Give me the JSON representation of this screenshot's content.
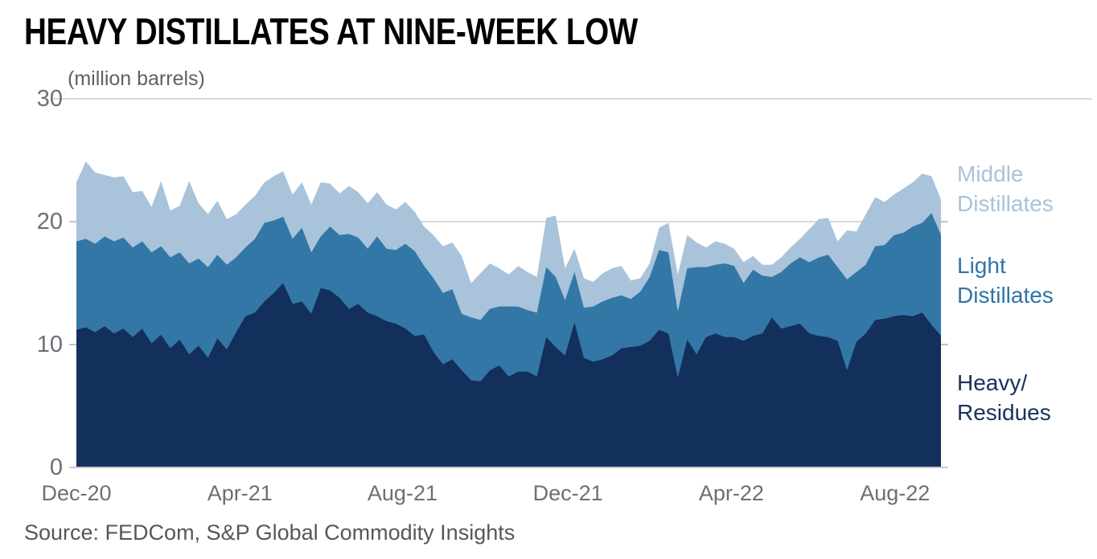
{
  "title": "HEAVY DISTILLATES AT NINE-WEEK LOW",
  "source": "Source: FEDCom, S&P Global Commodity Insights",
  "chart_data": {
    "type": "area",
    "stacked": true,
    "title": "HEAVY DISTILLATES AT NINE-WEEK LOW",
    "ylabel": "(million barrels)",
    "xlabel": "",
    "ylim": [
      0,
      30
    ],
    "y_ticks": [
      30,
      20,
      10,
      0
    ],
    "grid": true,
    "legend_position": "right",
    "frequency": "weekly",
    "n_points": 93,
    "x_range": [
      "Dec-20",
      "Sep-22"
    ],
    "x_tick_labels": [
      "Dec-20",
      "Apr-21",
      "Aug-21",
      "Dec-21",
      "Apr-22",
      "Aug-22"
    ],
    "x_tick_weeks": [
      0,
      17.4,
      34.7,
      52.3,
      69.7,
      87.1
    ],
    "series": [
      {
        "name": "Heavy/Residues",
        "color": "#132f5c",
        "values": [
          11.2,
          11.4,
          11.0,
          11.5,
          10.9,
          11.3,
          10.6,
          11.3,
          10.1,
          10.8,
          9.7,
          10.4,
          9.2,
          9.9,
          8.9,
          10.5,
          9.6,
          11.0,
          12.3,
          12.6,
          13.5,
          14.2,
          15.0,
          13.3,
          13.5,
          12.5,
          14.6,
          14.4,
          13.8,
          12.9,
          13.3,
          12.6,
          12.3,
          11.9,
          11.7,
          11.3,
          10.7,
          10.8,
          9.4,
          8.4,
          8.8,
          7.9,
          7.1,
          7.0,
          7.9,
          8.3,
          7.4,
          7.8,
          7.8,
          7.4,
          10.6,
          9.8,
          9.1,
          11.8,
          8.9,
          8.6,
          8.8,
          9.1,
          9.7,
          9.8,
          9.9,
          10.3,
          11.2,
          10.9,
          7.3,
          10.4,
          9.2,
          10.6,
          10.9,
          10.6,
          10.6,
          10.3,
          10.7,
          10.9,
          12.2,
          11.3,
          11.5,
          11.7,
          10.9,
          10.7,
          10.6,
          10.3,
          7.9,
          10.2,
          10.9,
          12.0,
          12.1,
          12.3,
          12.4,
          12.3,
          12.6,
          11.6,
          10.7
        ]
      },
      {
        "name": "Light Distillates",
        "color": "#3377a6",
        "values": [
          7.2,
          7.2,
          7.2,
          7.3,
          7.5,
          7.4,
          7.3,
          7.1,
          7.4,
          7.2,
          7.4,
          7.1,
          7.4,
          7.1,
          7.4,
          6.8,
          6.9,
          6.1,
          5.6,
          6.0,
          6.4,
          5.9,
          5.4,
          5.3,
          6.0,
          5.0,
          4.2,
          5.2,
          5.1,
          6.1,
          5.4,
          5.2,
          6.5,
          5.9,
          6.0,
          6.9,
          6.9,
          5.6,
          6.0,
          5.8,
          5.7,
          4.6,
          5.1,
          5.0,
          5.0,
          4.8,
          5.7,
          5.3,
          5.0,
          5.2,
          5.7,
          5.7,
          4.5,
          4.1,
          4.1,
          4.5,
          4.7,
          4.7,
          4.3,
          3.9,
          4.4,
          5.2,
          6.5,
          6.6,
          5.4,
          5.8,
          7.1,
          5.7,
          5.6,
          6.0,
          5.8,
          4.7,
          5.4,
          4.7,
          3.3,
          4.6,
          5.1,
          5.4,
          5.8,
          6.4,
          6.7,
          6.0,
          7.4,
          5.7,
          5.6,
          6.0,
          6.0,
          6.6,
          6.7,
          7.3,
          7.3,
          9.1,
          8.2
        ]
      },
      {
        "name": "Middle Distillates",
        "color": "#a9c3da",
        "values": [
          4.8,
          6.3,
          5.8,
          5.0,
          5.2,
          5.0,
          4.5,
          4.1,
          3.7,
          5.3,
          3.8,
          3.8,
          6.7,
          4.5,
          4.3,
          4.4,
          3.7,
          3.5,
          3.5,
          3.5,
          3.3,
          3.6,
          3.7,
          3.6,
          3.7,
          3.9,
          4.4,
          3.5,
          3.4,
          3.9,
          3.7,
          3.7,
          3.6,
          3.6,
          3.3,
          3.4,
          3.2,
          3.2,
          3.5,
          3.8,
          3.8,
          4.7,
          2.8,
          3.8,
          3.7,
          3.1,
          2.6,
          3.3,
          3.1,
          2.9,
          4.0,
          5.0,
          2.6,
          1.9,
          2.4,
          2.0,
          2.3,
          2.4,
          2.4,
          1.5,
          1.1,
          1.1,
          1.8,
          2.4,
          3.0,
          2.7,
          2.0,
          1.6,
          1.9,
          1.6,
          1.4,
          1.7,
          1.1,
          0.9,
          1.0,
          1.2,
          1.3,
          1.5,
          2.7,
          3.1,
          3.0,
          2.1,
          4.0,
          3.3,
          4.1,
          4.0,
          3.5,
          3.3,
          3.6,
          3.6,
          4.0,
          3.0,
          2.9
        ]
      }
    ],
    "legend": [
      {
        "label": "Middle\nDistillates",
        "color": "#a9c3da"
      },
      {
        "label": "Light\nDistillates",
        "color": "#2f74a6"
      },
      {
        "label": "Heavy/\nResidues",
        "color": "#16315e"
      }
    ],
    "colors": {
      "grid": "#d8d8d8",
      "axis_labels": "#6b7077",
      "title": "#000000"
    }
  }
}
